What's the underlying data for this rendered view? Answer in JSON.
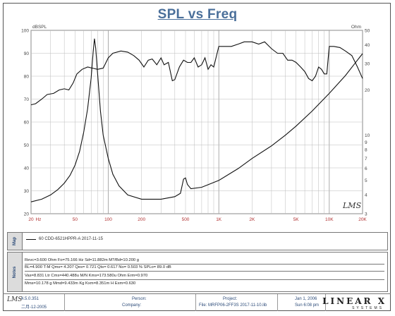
{
  "chart_data": {
    "type": "line",
    "title": "SPL vs Freq",
    "left_unit": "dBSPL",
    "right_unit": "Ohm",
    "left_axis": {
      "range": [
        20,
        100
      ],
      "ticks": [
        "100",
        "90",
        "80",
        "70",
        "60",
        "50",
        "40",
        "30",
        "20"
      ]
    },
    "right_axis": {
      "scale": "log",
      "range": [
        3,
        50
      ],
      "ticks": [
        {
          "v": 50,
          "t": "50"
        },
        {
          "v": 40,
          "t": "40"
        },
        {
          "v": 30,
          "t": "30"
        },
        {
          "v": 20,
          "t": "20"
        },
        {
          "v": 10,
          "t": "10"
        },
        {
          "v": 9,
          "t": "9"
        },
        {
          "v": 8,
          "t": "8"
        },
        {
          "v": 7,
          "t": "7"
        },
        {
          "v": 6,
          "t": "6"
        },
        {
          "v": 5,
          "t": "5"
        },
        {
          "v": 4,
          "t": "4"
        },
        {
          "v": 3,
          "t": "3"
        }
      ]
    },
    "x_axis": {
      "scale": "log",
      "range": [
        20,
        20000
      ],
      "ticks": [
        {
          "v": 20,
          "t": "20"
        },
        {
          "v": 22,
          "t": "Hz"
        },
        {
          "v": 50,
          "t": "50"
        },
        {
          "v": 100,
          "t": "100"
        },
        {
          "v": 200,
          "t": "200"
        },
        {
          "v": 500,
          "t": "500"
        },
        {
          "v": 1000,
          "t": "1K"
        },
        {
          "v": 2000,
          "t": "2K"
        },
        {
          "v": 5000,
          "t": "5K"
        },
        {
          "v": 10000,
          "t": "10K"
        },
        {
          "v": 20000,
          "t": "20K"
        }
      ]
    },
    "grid": true,
    "series": [
      {
        "axis": "left",
        "color": "#111111",
        "points": [
          [
            20,
            67.5
          ],
          [
            22,
            68
          ],
          [
            25,
            70
          ],
          [
            28,
            72
          ],
          [
            32,
            72.5
          ],
          [
            36,
            74
          ],
          [
            40,
            74.5
          ],
          [
            44,
            74
          ],
          [
            48,
            77
          ],
          [
            52,
            81
          ],
          [
            58,
            83
          ],
          [
            65,
            84
          ],
          [
            72,
            83.5
          ],
          [
            80,
            83
          ],
          [
            90,
            83.5
          ],
          [
            100,
            88
          ],
          [
            110,
            90
          ],
          [
            130,
            91
          ],
          [
            150,
            90.5
          ],
          [
            170,
            89
          ],
          [
            190,
            87
          ],
          [
            210,
            84
          ],
          [
            230,
            87
          ],
          [
            250,
            87.5
          ],
          [
            275,
            85
          ],
          [
            300,
            88
          ],
          [
            320,
            85
          ],
          [
            350,
            86
          ],
          [
            380,
            78
          ],
          [
            400,
            78.5
          ],
          [
            440,
            84
          ],
          [
            480,
            87
          ],
          [
            520,
            86
          ],
          [
            560,
            86
          ],
          [
            600,
            88
          ],
          [
            650,
            84
          ],
          [
            700,
            85
          ],
          [
            750,
            88
          ],
          [
            800,
            83
          ],
          [
            850,
            85
          ],
          [
            900,
            84
          ],
          [
            1000,
            93
          ],
          [
            1150,
            93
          ],
          [
            1300,
            93
          ],
          [
            1500,
            94
          ],
          [
            1700,
            95
          ],
          [
            2000,
            95
          ],
          [
            2300,
            94
          ],
          [
            2600,
            95
          ],
          [
            3000,
            92
          ],
          [
            3400,
            90
          ],
          [
            3800,
            90
          ],
          [
            4200,
            87
          ],
          [
            4600,
            87
          ],
          [
            5000,
            86
          ],
          [
            5500,
            84
          ],
          [
            6000,
            82
          ],
          [
            6500,
            79
          ],
          [
            7000,
            78
          ],
          [
            7500,
            80
          ],
          [
            8000,
            84
          ],
          [
            8500,
            83
          ],
          [
            9000,
            81
          ],
          [
            9500,
            81
          ],
          [
            10000,
            93
          ],
          [
            11000,
            93
          ],
          [
            12500,
            92.5
          ],
          [
            14000,
            91
          ],
          [
            16000,
            89
          ],
          [
            18000,
            84
          ],
          [
            20000,
            79
          ]
        ]
      },
      {
        "axis": "right",
        "color": "#111111",
        "points": [
          [
            20,
            3.6
          ],
          [
            25,
            3.75
          ],
          [
            30,
            4.0
          ],
          [
            35,
            4.35
          ],
          [
            40,
            4.8
          ],
          [
            45,
            5.4
          ],
          [
            50,
            6.3
          ],
          [
            55,
            7.8
          ],
          [
            60,
            10.5
          ],
          [
            65,
            15.0
          ],
          [
            70,
            24.0
          ],
          [
            73,
            36.0
          ],
          [
            75,
            44.0
          ],
          [
            77,
            38.0
          ],
          [
            80,
            26.0
          ],
          [
            85,
            14.5
          ],
          [
            90,
            10.0
          ],
          [
            100,
            7.0
          ],
          [
            110,
            5.5
          ],
          [
            125,
            4.6
          ],
          [
            150,
            4.0
          ],
          [
            200,
            3.75
          ],
          [
            300,
            3.75
          ],
          [
            400,
            3.9
          ],
          [
            450,
            4.1
          ],
          [
            480,
            5.1
          ],
          [
            500,
            5.2
          ],
          [
            520,
            4.7
          ],
          [
            560,
            4.4
          ],
          [
            700,
            4.5
          ],
          [
            1000,
            5.0
          ],
          [
            1500,
            6.0
          ],
          [
            2000,
            7.0
          ],
          [
            3000,
            8.5
          ],
          [
            4000,
            10.0
          ],
          [
            5000,
            11.5
          ],
          [
            7000,
            14.5
          ],
          [
            10000,
            19.0
          ],
          [
            14000,
            25.0
          ],
          [
            17000,
            30.0
          ],
          [
            20000,
            35.0
          ]
        ]
      }
    ]
  },
  "brand_mark": "LMS",
  "map": {
    "label": "Map",
    "entry": "60  CDD-6521HPPR-A  2017-11-15"
  },
  "notes": {
    "label": "Notes",
    "lines": [
      "Revc=3.600 Ohm  Fo=75.166 Hz  Sd=11.882m M?/Bd=10.200 g",
      "BL=4.900 T-M  Qms= 4.207  Qes= 0.721  Qts= 0.617  No= 0.503 %  SPLo= 89.0 dB",
      "Vas=8.831 Ltr  Cms=440.488u M/N  Kms=173.580u Ohm  Erm=0.970",
      "Mms=10.178 g  Mmd=9.433m Kg  Kxm=8.351m H  Exm=0.630"
    ]
  },
  "footer": {
    "version": "4.5.0.351",
    "date_left": "二月-12-2005",
    "person_label": "Person:",
    "company_label": "Company:",
    "project_label": "Project:",
    "file_label": "File: MRFP06-2FF3S 2017-11-10.lib",
    "date": "Jan 1, 2006",
    "time": "Sun  6:08 pm",
    "logo": "LINEAR X",
    "logo_sub": "SYSTEMS"
  }
}
